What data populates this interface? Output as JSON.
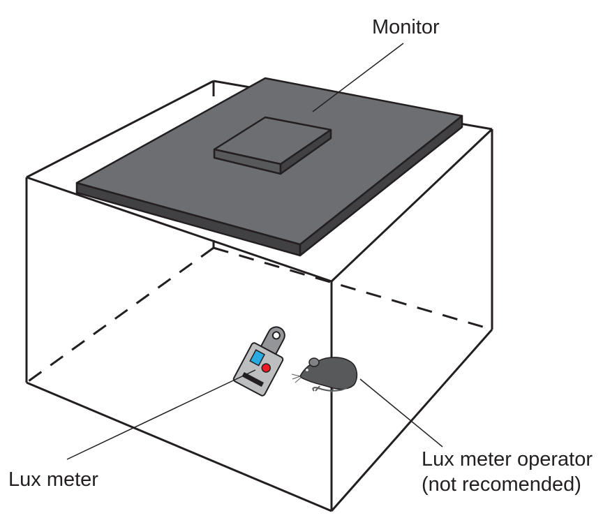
{
  "labels": {
    "monitor": "Monitor",
    "lux_meter": "Lux meter",
    "operator_line1": "Lux meter operator",
    "operator_line2": "(not recomended)"
  },
  "colors": {
    "stroke": "#231f20",
    "monitor_top": "#6d6e71",
    "monitor_edge": "#414042",
    "mouse": "#58595b",
    "meter_body": "#bcbec0",
    "meter_screen": "#29abe2",
    "meter_button": "#ed1c24"
  },
  "icons": {
    "lux_meter": "lux-meter-icon",
    "mouse": "mouse-icon"
  }
}
